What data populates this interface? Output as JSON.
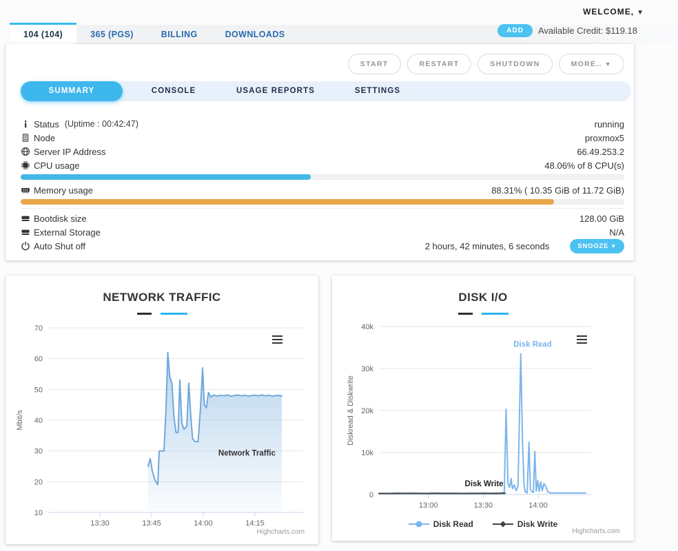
{
  "header": {
    "welcome_label": "WELCOME,",
    "add_button": "ADD",
    "credit_label": "Available Credit: $119.18"
  },
  "main_tabs": [
    {
      "label": "104 (104)"
    },
    {
      "label": "365 (PGS)"
    },
    {
      "label": "BILLING"
    },
    {
      "label": "DOWNLOADS"
    }
  ],
  "action_buttons": {
    "start": "START",
    "restart": "RESTART",
    "shutdown": "SHUTDOWN",
    "more": "MORE.."
  },
  "subtabs": [
    {
      "label": "SUMMARY"
    },
    {
      "label": "CONSOLE"
    },
    {
      "label": "USAGE REPORTS"
    },
    {
      "label": "SETTINGS"
    }
  ],
  "summary": {
    "rows": [
      {
        "icon": "info-icon",
        "label": "Status",
        "note": "(Uptime : 00:42:47)",
        "value": "running"
      },
      {
        "icon": "node-icon",
        "label": "Node",
        "value": "proxmox5"
      },
      {
        "icon": "globe-icon",
        "label": "Server IP Address",
        "value": "66.49.253.2"
      },
      {
        "icon": "cpu-icon",
        "label": "CPU usage",
        "value": "48.06% of 8 CPU(s)",
        "progress": 48.06,
        "color": "#45b6e8"
      },
      {
        "icon": "memory-icon",
        "label": "Memory usage",
        "value": "88.31% ( 10.35 GiB of 11.72 GiB)",
        "progress": 88.31,
        "color": "#eaa64a"
      },
      {
        "icon": "disk-icon",
        "label": "Bootdisk size",
        "value": "128.00 GiB"
      },
      {
        "icon": "storage-icon",
        "label": "External Storage",
        "value": "N/A"
      },
      {
        "icon": "power-icon",
        "label": "Auto Shut off",
        "value": "2 hours, 42 minutes, 6 seconds",
        "button": "SNOOZE"
      }
    ]
  },
  "colors": {
    "accent": "#3eb7ec",
    "cpu_bar": "#45b6e8",
    "memory_bar": "#eaa64a",
    "tab_link": "#2a6cae"
  },
  "chart_data": [
    {
      "type": "area",
      "title": "NETWORK TRAFFIC",
      "ylabel": "Mbit/s",
      "ylim": [
        10,
        70
      ],
      "xlim": [
        795,
        869
      ],
      "yticks": [
        {
          "v": 10,
          "label": "10"
        },
        {
          "v": 20,
          "label": "20"
        },
        {
          "v": 30,
          "label": "30"
        },
        {
          "v": 40,
          "label": "40"
        },
        {
          "v": 50,
          "label": "50"
        },
        {
          "v": 60,
          "label": "60"
        },
        {
          "v": 70,
          "label": "70"
        }
      ],
      "xticks": [
        {
          "v": 810,
          "label": "13:30"
        },
        {
          "v": 825,
          "label": "13:45"
        },
        {
          "v": 840,
          "label": "14:00"
        },
        {
          "v": 855,
          "label": "14:15"
        }
      ],
      "grid": true,
      "legend_position": "none",
      "credit": "Highcharts.com",
      "series": [
        {
          "name": "Network Traffic",
          "color": "#6fa8dc",
          "area": true,
          "points": [
            [
              824,
              25
            ],
            [
              824.6,
              27.5
            ],
            [
              825.2,
              23.5
            ],
            [
              826,
              20.5
            ],
            [
              826.8,
              19
            ],
            [
              827.2,
              30
            ],
            [
              828.6,
              30
            ],
            [
              829.2,
              44
            ],
            [
              829.7,
              62
            ],
            [
              830.3,
              54
            ],
            [
              830.9,
              52
            ],
            [
              831.5,
              41
            ],
            [
              832.1,
              36
            ],
            [
              832.7,
              36
            ],
            [
              833.2,
              53
            ],
            [
              833.8,
              39
            ],
            [
              834.4,
              37
            ],
            [
              835.2,
              38
            ],
            [
              835.8,
              52
            ],
            [
              836.4,
              41
            ],
            [
              836.9,
              34
            ],
            [
              837.6,
              33
            ],
            [
              838.5,
              33
            ],
            [
              839.2,
              44
            ],
            [
              839.8,
              57
            ],
            [
              840.3,
              45
            ],
            [
              840.9,
              44
            ],
            [
              841.5,
              49
            ],
            [
              842.2,
              47.5
            ],
            [
              843,
              48.2
            ],
            [
              844,
              47.8
            ],
            [
              845,
              48.1
            ],
            [
              846,
              47.9
            ],
            [
              847,
              48.2
            ],
            [
              848,
              47.8
            ],
            [
              849,
              48
            ],
            [
              850,
              48.2
            ],
            [
              851,
              47.9
            ],
            [
              852,
              48.1
            ],
            [
              853,
              47.8
            ],
            [
              854,
              48
            ],
            [
              855,
              48.1
            ],
            [
              856,
              47.9
            ],
            [
              857,
              48.2
            ],
            [
              858,
              47.9
            ],
            [
              859,
              48.1
            ],
            [
              860,
              47.8
            ],
            [
              861,
              48
            ],
            [
              862,
              48
            ],
            [
              862.8,
              47.9
            ]
          ]
        }
      ],
      "labels": [
        {
          "text": "Network Traffic",
          "x": 861,
          "y": 28.5,
          "color": "#333333",
          "anchor": "end"
        }
      ]
    },
    {
      "type": "line",
      "title": "DISK I/O",
      "ylabel": "Diskread & Diskwrite",
      "ylim": [
        0,
        40000
      ],
      "xlim": [
        753,
        869
      ],
      "yticks": [
        {
          "v": 0,
          "label": "0"
        },
        {
          "v": 10000,
          "label": "10k"
        },
        {
          "v": 20000,
          "label": "20k"
        },
        {
          "v": 30000,
          "label": "30k"
        },
        {
          "v": 40000,
          "label": "40k"
        }
      ],
      "xticks": [
        {
          "v": 780,
          "label": "13:00"
        },
        {
          "v": 810,
          "label": "13:30"
        },
        {
          "v": 840,
          "label": "14:00"
        }
      ],
      "grid": true,
      "legend_position": "bottom",
      "credit": "Highcharts.com",
      "series": [
        {
          "name": "Disk Read",
          "color": "#7cb5ec",
          "points": [
            [
              753,
              300
            ],
            [
              758,
              250
            ],
            [
              763,
              350
            ],
            [
              768,
              250
            ],
            [
              773,
              300
            ],
            [
              778,
              250
            ],
            [
              783,
              350
            ],
            [
              788,
              250
            ],
            [
              793,
              300
            ],
            [
              798,
              250
            ],
            [
              803,
              300
            ],
            [
              808,
              250
            ],
            [
              813,
              300
            ],
            [
              818,
              350
            ],
            [
              820,
              400
            ],
            [
              821.5,
              600
            ],
            [
              822.5,
              20300
            ],
            [
              823.5,
              2600
            ],
            [
              824.5,
              1700
            ],
            [
              825.2,
              3800
            ],
            [
              826,
              1400
            ],
            [
              827,
              2300
            ],
            [
              828,
              900
            ],
            [
              829,
              2000
            ],
            [
              830.5,
              33500
            ],
            [
              831.5,
              12000
            ],
            [
              832.3,
              2200
            ],
            [
              833,
              600
            ],
            [
              834,
              400
            ],
            [
              835,
              12500
            ],
            [
              835.8,
              1200
            ],
            [
              836.6,
              700
            ],
            [
              837.4,
              500
            ],
            [
              838.2,
              10300
            ],
            [
              839,
              800
            ],
            [
              839.8,
              3300
            ],
            [
              840.6,
              700
            ],
            [
              841.4,
              3000
            ],
            [
              842.3,
              900
            ],
            [
              843.2,
              2600
            ],
            [
              844.2,
              1900
            ],
            [
              845.2,
              700
            ],
            [
              846.5,
              400
            ],
            [
              848,
              350
            ],
            [
              850,
              400
            ],
            [
              852,
              350
            ],
            [
              854,
              400
            ],
            [
              856,
              350
            ],
            [
              858,
              400
            ],
            [
              860,
              350
            ],
            [
              862,
              400
            ],
            [
              864,
              350
            ],
            [
              866,
              400
            ]
          ]
        },
        {
          "name": "Disk Write",
          "color": "#434348",
          "points": [
            [
              753,
              250
            ],
            [
              760,
              250
            ],
            [
              770,
              300
            ],
            [
              780,
              250
            ],
            [
              790,
              300
            ],
            [
              800,
              250
            ],
            [
              810,
              300
            ],
            [
              816,
              250
            ],
            [
              822,
              300
            ]
          ]
        }
      ],
      "legend": [
        {
          "name": "Disk Read",
          "color": "#7cb5ec",
          "marker": "circle"
        },
        {
          "name": "Disk Write",
          "color": "#434348",
          "marker": "diamond"
        }
      ],
      "labels": [
        {
          "text": "Disk Read",
          "x": 837,
          "y": 35200,
          "color": "#7cb5ec",
          "anchor": "middle"
        },
        {
          "text": "Disk Write",
          "x": 821,
          "y": 2000,
          "color": "#222222",
          "anchor": "end"
        }
      ]
    }
  ]
}
